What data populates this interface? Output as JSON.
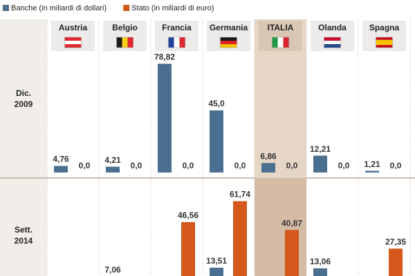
{
  "chart_data": {
    "type": "bar",
    "legend": [
      {
        "name": "Banche (in miliardi di dollari)",
        "color": "#4b6f90"
      },
      {
        "name": "Stato (in miliardi di euro)",
        "color": "#d4571b"
      }
    ],
    "categories": [
      "Austria",
      "Belgio",
      "Francia",
      "Germania",
      "ITALIA",
      "Olanda",
      "Spagna"
    ],
    "highlight": "ITALIA",
    "panels": [
      {
        "label": [
          "Dic.",
          "2009"
        ],
        "series": [
          {
            "values": [
              4.76,
              4.21,
              78.82,
              45.0,
              6.86,
              12.21,
              1.21
            ],
            "value_labels": [
              "4,76",
              "4,21",
              "78,82",
              "45,0",
              "6,86",
              "12,21",
              "1,21"
            ]
          },
          {
            "values": [
              0,
              0,
              0,
              0,
              0,
              0,
              0
            ],
            "value_labels": [
              "0,0",
              "0,0",
              "0,0",
              "0,0",
              "0,0",
              "0,0",
              "0,0"
            ]
          }
        ]
      },
      {
        "label": [
          "Sett.",
          "2014"
        ],
        "series": [
          {
            "values": [
              null,
              7.06,
              null,
              13.51,
              null,
              13.06,
              null
            ],
            "value_labels": [
              null,
              "7,06",
              null,
              "13,51",
              null,
              "13,06",
              null
            ]
          },
          {
            "values": [
              null,
              null,
              46.56,
              61.74,
              40.87,
              null,
              27.35
            ],
            "value_labels": [
              null,
              null,
              "46,56",
              "61,74",
              "40,87",
              null,
              "27,35"
            ]
          }
        ]
      }
    ]
  }
}
